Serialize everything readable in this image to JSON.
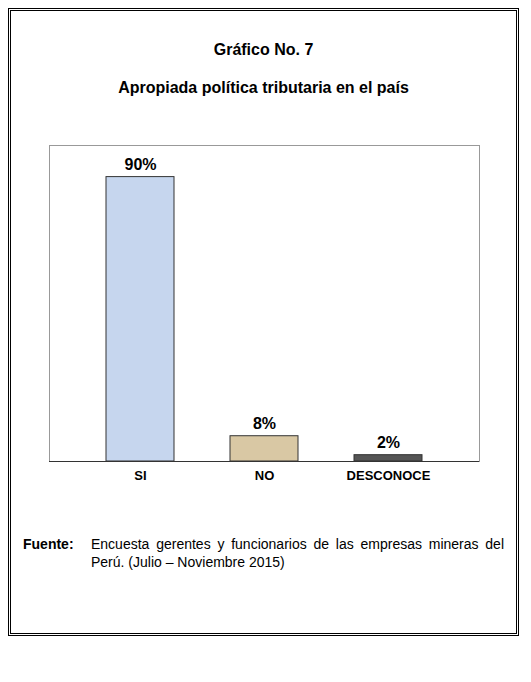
{
  "chart_data": {
    "type": "bar",
    "title": "Gráfico No. 7",
    "subtitle": "Apropiada política tributaria en el país",
    "categories": [
      "SI",
      "NO",
      "DESCONOCE"
    ],
    "values": [
      90,
      8,
      2
    ],
    "value_labels": [
      "90%",
      "8%",
      "2%"
    ],
    "colors": [
      "#c6d6ee",
      "#d9c8a4",
      "#555555"
    ],
    "ylim": [
      0,
      100
    ],
    "data_labels": true,
    "tick_labels": "x",
    "source_label": "Fuente:",
    "source": "Encuesta gerentes y funcionarios de las empresas mineras del Perú. (Julio – Noviembre 2015)"
  }
}
